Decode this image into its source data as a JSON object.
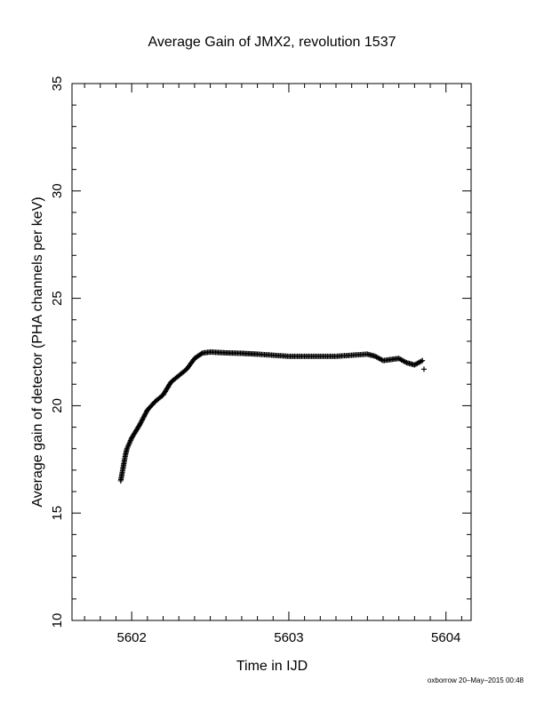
{
  "chart_data": {
    "type": "scatter",
    "title": "Average Gain of JMX2, revolution 1537",
    "xlabel": "Time in IJD",
    "ylabel": "Average gain of detector (PHA channels per keV)",
    "xlim": [
      5601.62,
      5604.16
    ],
    "ylim": [
      10,
      35
    ],
    "xticks": [
      5602,
      5603,
      5604
    ],
    "xtick_labels": [
      "5602",
      "5603",
      "5604"
    ],
    "yticks": [
      10,
      15,
      20,
      25,
      30,
      35
    ],
    "ytick_labels": [
      "10",
      "15",
      "20",
      "25",
      "30",
      "35"
    ],
    "x_minor_step": 0.1,
    "y_minor_step": 1,
    "grid": false,
    "marker": "+",
    "color": "#000000",
    "series": [
      {
        "x": [
          5601.93,
          5601.94,
          5601.95,
          5601.96,
          5601.97,
          5602.0,
          5602.05,
          5602.1,
          5602.15,
          5602.2,
          5602.25,
          5602.3,
          5602.35,
          5602.4,
          5602.45,
          5602.5,
          5602.55,
          5602.6,
          5602.65,
          5602.7,
          5602.75,
          5602.8,
          5602.9,
          5603.0,
          5603.1,
          5603.2,
          5603.3,
          5603.4,
          5603.5,
          5603.55,
          5603.6,
          5603.65,
          5603.7,
          5603.75,
          5603.8,
          5603.85,
          5603.86
        ],
        "y": [
          16.5,
          16.9,
          17.3,
          17.7,
          18.0,
          18.5,
          19.1,
          19.8,
          20.2,
          20.5,
          21.1,
          21.4,
          21.7,
          22.2,
          22.45,
          22.5,
          22.48,
          22.46,
          22.45,
          22.44,
          22.42,
          22.4,
          22.35,
          22.3,
          22.3,
          22.3,
          22.3,
          22.35,
          22.4,
          22.3,
          22.1,
          22.15,
          22.2,
          22.0,
          21.9,
          22.1,
          21.7
        ]
      }
    ]
  },
  "footer": {
    "stamp": "oxborrow 20–May–2015 00:48"
  }
}
